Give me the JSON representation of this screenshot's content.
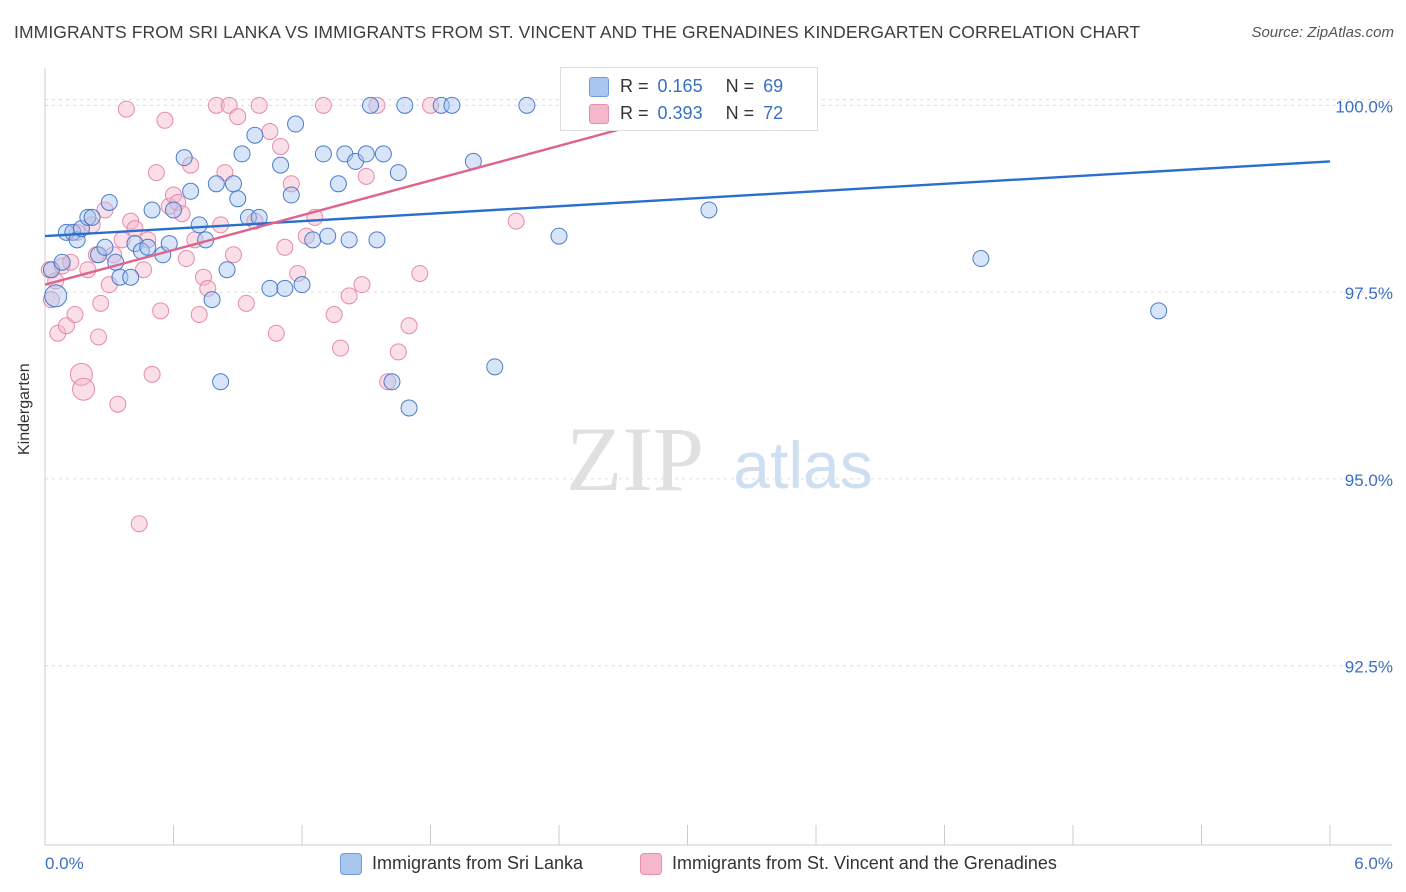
{
  "title": "IMMIGRANTS FROM SRI LANKA VS IMMIGRANTS FROM ST. VINCENT AND THE GRENADINES KINDERGARTEN CORRELATION CHART",
  "source": "Source: ZipAtlas.com",
  "watermark": {
    "zip": "ZIP",
    "atlas": "atlas"
  },
  "legend": {
    "r_label": "R =",
    "n_label": "N =",
    "rows": [
      {
        "r": "0.165",
        "n": "69"
      },
      {
        "r": "0.393",
        "n": "72"
      }
    ]
  },
  "colors": {
    "blue_fill": "#a9c6ef",
    "blue_stroke": "#3b6fc4",
    "blue_line": "#2a6fcc",
    "pink_fill": "#f4b7cb",
    "pink_stroke": "#e67ea3",
    "pink_line": "#e0638e",
    "grid": "#dcdcdc",
    "axis_text": "#3b6fc4"
  },
  "chart_data": {
    "type": "scatter",
    "title": "IMMIGRANTS FROM SRI LANKA VS IMMIGRANTS FROM ST. VINCENT AND THE GRENADINES KINDERGARTEN CORRELATION CHART",
    "xlabel": "",
    "ylabel": "Kindergarten",
    "xlim": [
      0,
      6
    ],
    "ylim": [
      90.1,
      100.5
    ],
    "x_tick_labels": [
      "0.0%",
      "6.0%"
    ],
    "y_ticks": [
      92.5,
      95.0,
      97.5,
      100.0
    ],
    "y_tick_labels": [
      "92.5%",
      "95.0%",
      "97.5%",
      "100.0%"
    ],
    "series": [
      {
        "name": "Immigrants from Sri Lanka",
        "color": "#3b6fc4",
        "r": 0.165,
        "n": 69,
        "trendline": {
          "x": [
            0,
            6
          ],
          "y": [
            98.25,
            99.25
          ]
        },
        "points": [
          [
            0.03,
            97.8
          ],
          [
            0.05,
            97.45
          ],
          [
            0.08,
            97.9
          ],
          [
            0.1,
            98.3
          ],
          [
            0.13,
            98.3
          ],
          [
            0.15,
            98.2
          ],
          [
            0.17,
            98.35
          ],
          [
            0.2,
            98.5
          ],
          [
            0.22,
            98.5
          ],
          [
            0.25,
            98.0
          ],
          [
            0.28,
            98.1
          ],
          [
            0.3,
            98.7
          ],
          [
            0.33,
            97.9
          ],
          [
            0.35,
            97.7
          ],
          [
            0.4,
            97.7
          ],
          [
            0.42,
            98.15
          ],
          [
            0.45,
            98.05
          ],
          [
            0.48,
            98.1
          ],
          [
            0.5,
            98.6
          ],
          [
            0.55,
            98.0
          ],
          [
            0.58,
            98.15
          ],
          [
            0.6,
            98.6
          ],
          [
            0.65,
            99.3
          ],
          [
            0.68,
            98.85
          ],
          [
            0.72,
            98.4
          ],
          [
            0.75,
            98.2
          ],
          [
            0.8,
            98.95
          ],
          [
            0.78,
            97.4
          ],
          [
            0.82,
            96.3
          ],
          [
            0.85,
            97.8
          ],
          [
            0.88,
            98.95
          ],
          [
            0.9,
            98.75
          ],
          [
            0.92,
            99.35
          ],
          [
            0.95,
            98.5
          ],
          [
            0.98,
            99.6
          ],
          [
            1.0,
            98.5
          ],
          [
            1.05,
            97.55
          ],
          [
            1.1,
            99.2
          ],
          [
            1.12,
            97.55
          ],
          [
            1.15,
            98.8
          ],
          [
            1.17,
            99.75
          ],
          [
            1.2,
            97.6
          ],
          [
            1.25,
            98.2
          ],
          [
            1.3,
            99.35
          ],
          [
            1.32,
            98.25
          ],
          [
            1.37,
            98.95
          ],
          [
            1.4,
            99.35
          ],
          [
            1.42,
            98.2
          ],
          [
            1.45,
            99.25
          ],
          [
            1.5,
            99.35
          ],
          [
            1.52,
            100.0
          ],
          [
            1.55,
            98.2
          ],
          [
            1.58,
            99.35
          ],
          [
            1.62,
            96.3
          ],
          [
            1.65,
            99.1
          ],
          [
            1.68,
            100.0
          ],
          [
            1.7,
            95.95
          ],
          [
            1.85,
            100.0
          ],
          [
            1.9,
            100.0
          ],
          [
            2.0,
            99.25
          ],
          [
            2.1,
            96.5
          ],
          [
            2.25,
            100.0
          ],
          [
            2.4,
            98.25
          ],
          [
            2.55,
            100.0
          ],
          [
            2.7,
            100.0
          ],
          [
            2.85,
            100.0
          ],
          [
            3.1,
            98.6
          ],
          [
            4.37,
            97.95
          ],
          [
            5.2,
            97.25
          ]
        ]
      },
      {
        "name": "Immigrants from St. Vincent and the Grenadines",
        "color": "#e67ea3",
        "r": 0.393,
        "n": 72,
        "trendline": {
          "x": [
            0,
            3.1
          ],
          "y": [
            97.6,
            100.0
          ]
        },
        "points": [
          [
            0.02,
            97.8
          ],
          [
            0.03,
            97.4
          ],
          [
            0.05,
            97.65
          ],
          [
            0.06,
            96.95
          ],
          [
            0.08,
            97.85
          ],
          [
            0.1,
            97.05
          ],
          [
            0.12,
            97.9
          ],
          [
            0.14,
            97.2
          ],
          [
            0.15,
            98.3
          ],
          [
            0.17,
            96.4
          ],
          [
            0.18,
            96.2
          ],
          [
            0.2,
            97.8
          ],
          [
            0.22,
            98.4
          ],
          [
            0.24,
            98.0
          ],
          [
            0.25,
            96.9
          ],
          [
            0.26,
            97.35
          ],
          [
            0.28,
            98.6
          ],
          [
            0.3,
            97.6
          ],
          [
            0.32,
            98.0
          ],
          [
            0.34,
            96.0
          ],
          [
            0.36,
            98.2
          ],
          [
            0.38,
            99.95
          ],
          [
            0.4,
            98.45
          ],
          [
            0.42,
            98.35
          ],
          [
            0.44,
            94.4
          ],
          [
            0.46,
            97.8
          ],
          [
            0.48,
            98.2
          ],
          [
            0.5,
            96.4
          ],
          [
            0.52,
            99.1
          ],
          [
            0.54,
            97.25
          ],
          [
            0.56,
            99.8
          ],
          [
            0.58,
            98.65
          ],
          [
            0.6,
            98.8
          ],
          [
            0.62,
            98.7
          ],
          [
            0.64,
            98.55
          ],
          [
            0.66,
            97.95
          ],
          [
            0.68,
            99.2
          ],
          [
            0.7,
            98.2
          ],
          [
            0.72,
            97.2
          ],
          [
            0.74,
            97.7
          ],
          [
            0.76,
            97.55
          ],
          [
            0.8,
            100.0
          ],
          [
            0.82,
            98.4
          ],
          [
            0.84,
            99.1
          ],
          [
            0.86,
            100.0
          ],
          [
            0.88,
            98.0
          ],
          [
            0.9,
            99.85
          ],
          [
            0.94,
            97.35
          ],
          [
            0.98,
            98.45
          ],
          [
            1.0,
            100.0
          ],
          [
            1.05,
            99.65
          ],
          [
            1.08,
            96.95
          ],
          [
            1.1,
            99.45
          ],
          [
            1.12,
            98.1
          ],
          [
            1.15,
            98.95
          ],
          [
            1.18,
            97.75
          ],
          [
            1.22,
            98.25
          ],
          [
            1.26,
            98.5
          ],
          [
            1.3,
            100.0
          ],
          [
            1.35,
            97.2
          ],
          [
            1.38,
            96.75
          ],
          [
            1.42,
            97.45
          ],
          [
            1.48,
            97.6
          ],
          [
            1.5,
            99.05
          ],
          [
            1.55,
            100.0
          ],
          [
            1.6,
            96.3
          ],
          [
            1.65,
            96.7
          ],
          [
            1.7,
            97.05
          ],
          [
            1.75,
            97.75
          ],
          [
            1.8,
            100.0
          ],
          [
            2.2,
            98.45
          ],
          [
            2.65,
            100.0
          ]
        ]
      }
    ]
  },
  "bottom_legend": [
    {
      "label": "Immigrants from Sri Lanka"
    },
    {
      "label": "Immigrants from St. Vincent and the Grenadines"
    }
  ]
}
